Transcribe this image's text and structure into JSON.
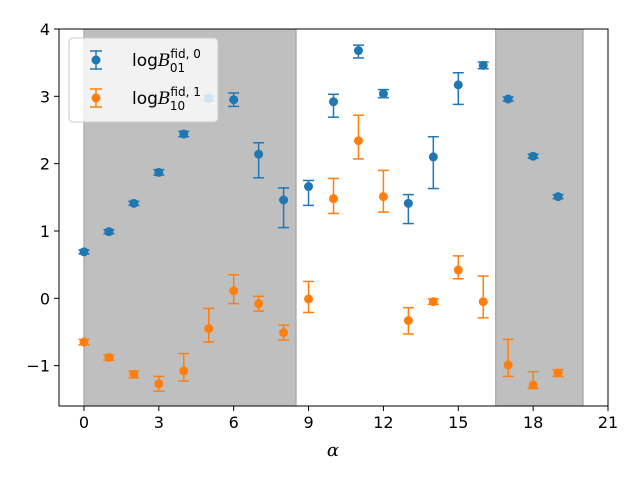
{
  "chart_data": {
    "type": "scatter",
    "title": "",
    "xlabel": "α",
    "ylabel": "",
    "xlim": [
      -1,
      21
    ],
    "ylim": [
      -1.6,
      4
    ],
    "xticks": [
      0,
      3,
      6,
      9,
      12,
      15,
      18,
      21
    ],
    "yticks": [
      -1,
      0,
      1,
      2,
      3,
      4
    ],
    "grid": false,
    "legend_position": "top-left",
    "shaded_regions": [
      {
        "x_start": 0,
        "x_end": 8.5,
        "color": "#bfbfbf"
      },
      {
        "x_start": 16.5,
        "x_end": 20,
        "color": "#bfbfbf"
      }
    ],
    "series": [
      {
        "name": "logB01 fid,0",
        "legend_main": "log",
        "legend_sym": "B",
        "legend_sup": "fid, 0",
        "legend_sub": "01",
        "color": "#1f77b4",
        "x": [
          0,
          1,
          2,
          3,
          4,
          5,
          6,
          7,
          8,
          9,
          10,
          11,
          12,
          13,
          14,
          15,
          16,
          17,
          18,
          19
        ],
        "values": [
          0.69,
          0.99,
          1.41,
          1.87,
          2.44,
          2.97,
          2.95,
          2.14,
          1.46,
          1.66,
          2.92,
          3.68,
          3.04,
          1.41,
          2.1,
          3.17,
          3.46,
          2.96,
          2.11,
          1.51
        ],
        "err_low": [
          0.03,
          0.03,
          0.03,
          0.04,
          0.04,
          0.04,
          0.1,
          0.35,
          0.41,
          0.28,
          0.23,
          0.11,
          0.06,
          0.3,
          0.47,
          0.29,
          0.05,
          0.03,
          0.03,
          0.03
        ],
        "err_high": [
          0.03,
          0.03,
          0.03,
          0.04,
          0.04,
          0.04,
          0.1,
          0.17,
          0.18,
          0.09,
          0.11,
          0.08,
          0.06,
          0.13,
          0.3,
          0.18,
          0.05,
          0.03,
          0.03,
          0.03
        ]
      },
      {
        "name": "logB10 fid,1",
        "legend_main": "log",
        "legend_sym": "B",
        "legend_sup": "fid, 1",
        "legend_sub": "10",
        "color": "#ff7f0e",
        "x": [
          0,
          1,
          2,
          3,
          4,
          5,
          6,
          7,
          8,
          9,
          10,
          11,
          12,
          13,
          14,
          15,
          16,
          17,
          18,
          19
        ],
        "values": [
          -0.65,
          -0.88,
          -1.13,
          -1.27,
          -1.08,
          -0.45,
          0.11,
          -0.08,
          -0.51,
          -0.01,
          1.48,
          2.34,
          1.51,
          -0.33,
          -0.05,
          0.42,
          -0.05,
          -0.99,
          -1.29,
          -1.11
        ],
        "err_low": [
          0.04,
          0.04,
          0.05,
          0.11,
          0.15,
          0.2,
          0.19,
          0.11,
          0.11,
          0.2,
          0.22,
          0.27,
          0.23,
          0.2,
          0.04,
          0.13,
          0.24,
          0.17,
          0.05,
          0.05
        ],
        "err_high": [
          0.04,
          0.04,
          0.05,
          0.11,
          0.26,
          0.3,
          0.24,
          0.11,
          0.11,
          0.26,
          0.3,
          0.38,
          0.39,
          0.19,
          0.04,
          0.21,
          0.38,
          0.38,
          0.2,
          0.05
        ]
      }
    ]
  }
}
